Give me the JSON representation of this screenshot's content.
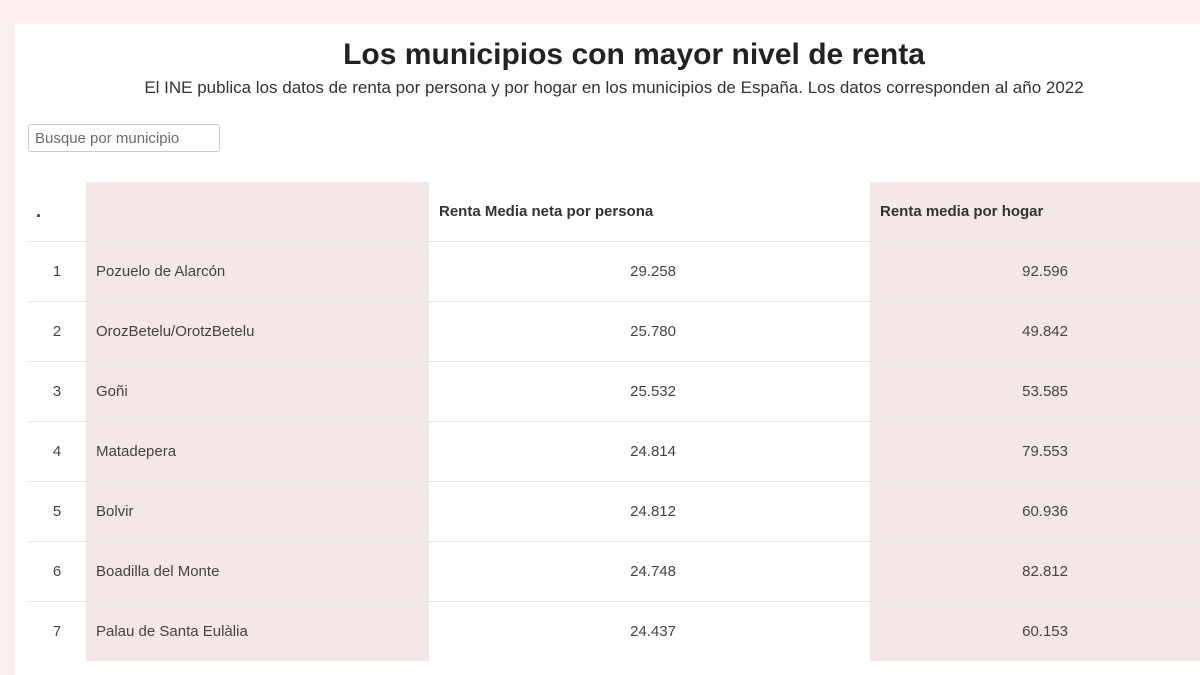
{
  "header": {
    "title": "Los municipios con mayor nivel de renta",
    "subtitle": "El INE publica los datos de renta por persona y por hogar en los municipios de España. Los datos corresponden al año 2022"
  },
  "search": {
    "placeholder": "Busque por municipio"
  },
  "table": {
    "columns": {
      "rank": ".",
      "municipality": "",
      "per_person": "Renta Media neta por persona",
      "per_household": "Renta media por hogar"
    },
    "rows": [
      {
        "rank": "1",
        "municipality": "Pozuelo de Alarcón",
        "per_person": "29.258",
        "per_household": "92.596"
      },
      {
        "rank": "2",
        "municipality": "OrozBetelu/OrotzBetelu",
        "per_person": "25.780",
        "per_household": "49.842"
      },
      {
        "rank": "3",
        "municipality": "Goñi",
        "per_person": "25.532",
        "per_household": "53.585"
      },
      {
        "rank": "4",
        "municipality": "Matadepera",
        "per_person": "24.814",
        "per_household": "79.553"
      },
      {
        "rank": "5",
        "municipality": "Bolvir",
        "per_person": "24.812",
        "per_household": "60.936"
      },
      {
        "rank": "6",
        "municipality": "Boadilla del Monte",
        "per_person": "24.748",
        "per_household": "82.812"
      },
      {
        "rank": "7",
        "municipality": "Palau de Santa Eulàlia",
        "per_person": "24.437",
        "per_household": "60.153"
      }
    ]
  },
  "colors": {
    "page_background": "#fbeeee",
    "column_shade": "#f4e7e7",
    "card_background": "#ffffff"
  }
}
